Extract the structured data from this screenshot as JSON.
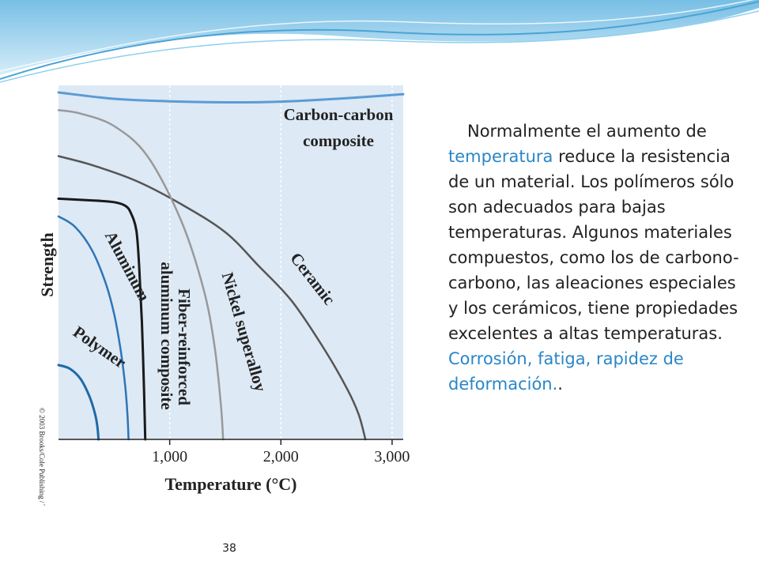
{
  "slide": {
    "number": "38",
    "text": {
      "p1_a": "Normalmente el aumento de ",
      "p1_highlight": "temperatura",
      "p1_b": " reduce la resistencia de un material. Los polímeros sólo son adecuados para bajas temperaturas.  Algunos materiales compuestos, como los de carbono-carbono, las aleaciones especiales y los cerámicos, tiene propiedades excelentes a altas temperaturas.",
      "p2": "Corrosión, fatiga, rapidez de deformación."
    },
    "copyright": "© 2003 Brooks/Cole Publishing / Thomson Learning™",
    "colors": {
      "accent": "#2a86c8",
      "plot_background": "#dde9f5",
      "header_wave": "#7ec3e6"
    }
  },
  "chart_data": {
    "type": "line",
    "xlabel": "Temperature (°C)",
    "ylabel": "Strength",
    "xlim": [
      0,
      3100
    ],
    "ylim": [
      0,
      1
    ],
    "y_ticks_shown": false,
    "x_ticks": [
      {
        "value": 1000,
        "label": "1,000"
      },
      {
        "value": 2000,
        "label": "2,000"
      },
      {
        "value": 3000,
        "label": "3,000"
      }
    ],
    "grid": "vertical",
    "series": [
      {
        "name": "Carbon-carbon composite",
        "color": "#5b9bd5",
        "width": 3,
        "x": [
          0,
          500,
          1000,
          1500,
          2000,
          2500,
          3100
        ],
        "y": [
          0.98,
          0.962,
          0.955,
          0.952,
          0.954,
          0.962,
          0.975
        ]
      },
      {
        "name": "Ceramic",
        "color": "#555555",
        "width": 2.5,
        "x": [
          0,
          300,
          700,
          1100,
          1500,
          1800,
          2100,
          2400,
          2600,
          2700,
          2760
        ],
        "y": [
          0.8,
          0.775,
          0.73,
          0.665,
          0.585,
          0.49,
          0.39,
          0.25,
          0.14,
          0.07,
          0
        ]
      },
      {
        "name": "Nickel superalloy",
        "color": "#999999",
        "width": 2.5,
        "x": [
          0,
          200,
          500,
          800,
          1100,
          1300,
          1400,
          1460,
          1480
        ],
        "y": [
          0.93,
          0.92,
          0.885,
          0.8,
          0.62,
          0.43,
          0.27,
          0.1,
          0
        ]
      },
      {
        "name": "Fiber-reinforced aluminum composite",
        "color": "#1a1a1a",
        "width": 3,
        "x": [
          0,
          300,
          500,
          600,
          650,
          700,
          725,
          750,
          770,
          780
        ],
        "y": [
          0.68,
          0.675,
          0.67,
          0.66,
          0.64,
          0.59,
          0.49,
          0.33,
          0.13,
          0
        ]
      },
      {
        "name": "Aluminum",
        "color": "#2e75b6",
        "width": 2.5,
        "x": [
          0,
          150,
          300,
          420,
          500,
          560,
          600,
          620,
          630
        ],
        "y": [
          0.63,
          0.6,
          0.535,
          0.445,
          0.355,
          0.25,
          0.15,
          0.07,
          0
        ]
      },
      {
        "name": "Polymer",
        "color": "#1f6aa5",
        "width": 3,
        "x": [
          0,
          100,
          200,
          280,
          330,
          350,
          360
        ],
        "y": [
          0.21,
          0.2,
          0.17,
          0.12,
          0.07,
          0.035,
          0
        ]
      }
    ],
    "curve_labels": [
      {
        "text": "Carbon-carbon",
        "series": "Carbon-carbon composite"
      },
      {
        "text": "composite",
        "series": "Carbon-carbon composite"
      },
      {
        "text": "Ceramic",
        "series": "Ceramic"
      },
      {
        "text": "Nickel superalloy",
        "series": "Nickel superalloy"
      },
      {
        "text": "Fiber-reinforced",
        "series": "Fiber-reinforced aluminum composite"
      },
      {
        "text": "aluminum composite",
        "series": "Fiber-reinforced aluminum composite"
      },
      {
        "text": "Aluminum",
        "series": "Aluminum"
      },
      {
        "text": "Polymer",
        "series": "Polymer"
      }
    ]
  }
}
